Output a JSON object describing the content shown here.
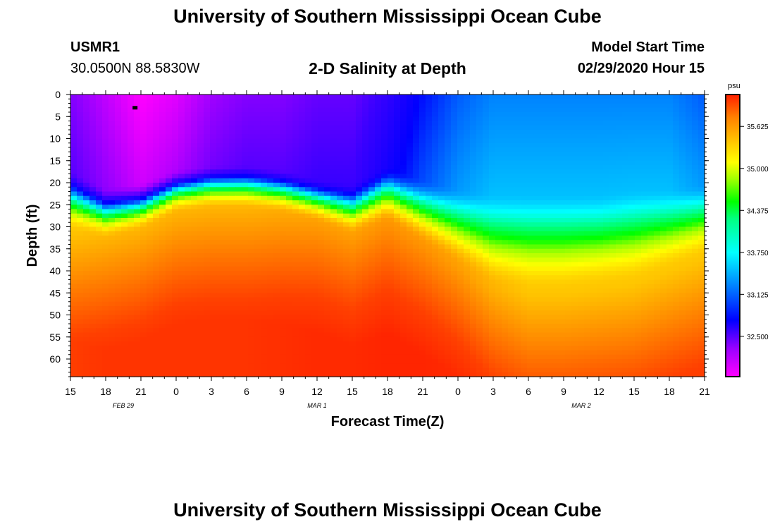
{
  "header": {
    "title": "University of Southern Mississippi Ocean Cube",
    "station_id": "USMR1",
    "station_coords": "30.0500N 88.5830W",
    "plot_title": "2-D Salinity at Depth",
    "model_start_label": "Model Start Time",
    "model_start_value": "02/29/2020 Hour 15"
  },
  "footer": {
    "title": "University of Southern Mississippi Ocean Cube"
  },
  "chart_data": {
    "type": "heatmap",
    "title": "2-D Salinity at Depth",
    "xlabel": "Forecast Time(Z)",
    "ylabel": "Depth (ft)",
    "x_ticks": [
      "15",
      "18",
      "21",
      "0",
      "3",
      "6",
      "9",
      "12",
      "15",
      "18",
      "21",
      "0",
      "3",
      "6",
      "9",
      "12",
      "15",
      "18",
      "21"
    ],
    "x_range_hours": [
      0,
      54
    ],
    "date_labels": [
      {
        "label": "FEB 29",
        "hour": 4.5
      },
      {
        "label": "MAR 1",
        "hour": 21
      },
      {
        "label": "MAR 2",
        "hour": 43.5
      }
    ],
    "y_ticks": [
      0,
      5,
      10,
      15,
      20,
      25,
      30,
      35,
      40,
      45,
      50,
      55,
      60
    ],
    "y_range": [
      0,
      64
    ],
    "colorbar": {
      "unit": "psu",
      "min": 31.9,
      "max": 36.1,
      "ticks": [
        "35.625",
        "35.000",
        "34.375",
        "33.750",
        "33.125",
        "32.500"
      ]
    },
    "colors": [
      "#ff00ff",
      "#9a00ff",
      "#3a00ff",
      "#0000ff",
      "#0080ff",
      "#00ffff",
      "#00ff80",
      "#00ff00",
      "#a0ff00",
      "#ffff00",
      "#ffc000",
      "#ff8000",
      "#ff4000",
      "#ff2000"
    ],
    "layers": {
      "x_hours": [
        0,
        3,
        6,
        9,
        12,
        15,
        18,
        21,
        24,
        27,
        30,
        33,
        36,
        39,
        42,
        45,
        48,
        51,
        54
      ],
      "surface_salinity": [
        32.3,
        32.1,
        31.9,
        32.0,
        32.2,
        32.3,
        32.3,
        32.4,
        32.4,
        32.6,
        32.9,
        33.1,
        33.2,
        33.2,
        33.2,
        33.2,
        33.2,
        33.2,
        33.1
      ],
      "halocline_top_ft": [
        17,
        21,
        20,
        17,
        16,
        16,
        17,
        19,
        20,
        16,
        19,
        21,
        22,
        22,
        22,
        22,
        21,
        21,
        20
      ],
      "halocline_bottom_ft": [
        31,
        33,
        31,
        27,
        26,
        26,
        27,
        29,
        32,
        29,
        34,
        39,
        44,
        45,
        45,
        44,
        43,
        40,
        37
      ],
      "bottom_salinity": [
        35.8,
        35.9,
        35.9,
        35.9,
        35.9,
        35.9,
        35.95,
        36.0,
        36.0,
        36.05,
        36.05,
        36.0,
        35.9,
        35.8,
        35.8,
        35.8,
        35.8,
        35.8,
        35.8
      ]
    },
    "marker": {
      "hour": 5.5,
      "depth": 3
    }
  }
}
